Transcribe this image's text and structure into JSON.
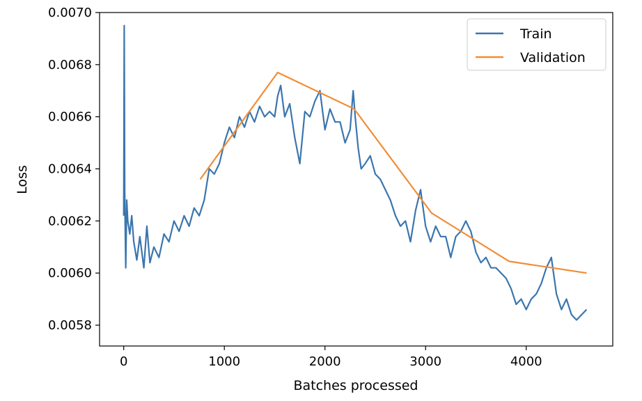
{
  "chart_data": {
    "type": "line",
    "title": "",
    "xlabel": "Batches processed",
    "ylabel": "Loss",
    "xlim": [
      -240,
      4860
    ],
    "ylim": [
      0.00572,
      0.007
    ],
    "x_ticks": [
      0,
      1000,
      2000,
      3000,
      4000
    ],
    "x_tick_labels": [
      "0",
      "1000",
      "2000",
      "3000",
      "4000"
    ],
    "y_ticks": [
      0.0058,
      0.006,
      0.0062,
      0.0064,
      0.0066,
      0.0068,
      0.007
    ],
    "y_tick_labels": [
      "0.0058",
      "0.0060",
      "0.0062",
      "0.0064",
      "0.0066",
      "0.0068",
      "0.0070"
    ],
    "grid": false,
    "legend_position": "top-right",
    "series": [
      {
        "name": "Train",
        "color": "#3a76ae",
        "x": [
          0,
          5,
          10,
          20,
          30,
          40,
          60,
          80,
          100,
          130,
          160,
          200,
          230,
          260,
          300,
          350,
          400,
          450,
          500,
          550,
          600,
          650,
          700,
          750,
          800,
          850,
          900,
          950,
          1000,
          1050,
          1100,
          1150,
          1200,
          1250,
          1300,
          1350,
          1400,
          1450,
          1500,
          1530,
          1560,
          1600,
          1650,
          1700,
          1750,
          1800,
          1850,
          1900,
          1950,
          2000,
          2050,
          2100,
          2150,
          2200,
          2250,
          2280,
          2300,
          2330,
          2360,
          2400,
          2450,
          2500,
          2550,
          2600,
          2650,
          2700,
          2750,
          2800,
          2850,
          2900,
          2950,
          3000,
          3050,
          3100,
          3150,
          3200,
          3250,
          3300,
          3350,
          3400,
          3450,
          3500,
          3550,
          3600,
          3650,
          3700,
          3750,
          3800,
          3850,
          3900,
          3950,
          4000,
          4050,
          4100,
          4150,
          4200,
          4250,
          4300,
          4350,
          4400,
          4450,
          4500,
          4550,
          4600
        ],
        "y": [
          0.00622,
          0.00695,
          0.00632,
          0.00602,
          0.00628,
          0.0062,
          0.00615,
          0.00622,
          0.00612,
          0.00605,
          0.00614,
          0.00602,
          0.00618,
          0.00604,
          0.0061,
          0.00606,
          0.00615,
          0.00612,
          0.0062,
          0.00616,
          0.00622,
          0.00618,
          0.00625,
          0.00622,
          0.00628,
          0.0064,
          0.00638,
          0.00642,
          0.0065,
          0.00656,
          0.00652,
          0.0066,
          0.00656,
          0.00662,
          0.00658,
          0.00664,
          0.0066,
          0.00662,
          0.0066,
          0.00668,
          0.00672,
          0.0066,
          0.00665,
          0.00652,
          0.00642,
          0.00662,
          0.0066,
          0.00666,
          0.0067,
          0.00655,
          0.00663,
          0.00658,
          0.00658,
          0.0065,
          0.00655,
          0.0067,
          0.0066,
          0.00648,
          0.0064,
          0.00642,
          0.00645,
          0.00638,
          0.00636,
          0.00632,
          0.00628,
          0.00622,
          0.00618,
          0.0062,
          0.00612,
          0.00624,
          0.00632,
          0.00618,
          0.00612,
          0.00618,
          0.00614,
          0.00614,
          0.00606,
          0.00614,
          0.00616,
          0.0062,
          0.00616,
          0.00608,
          0.00604,
          0.00606,
          0.00602,
          0.00602,
          0.006,
          0.00598,
          0.00594,
          0.00588,
          0.0059,
          0.00586,
          0.0059,
          0.00592,
          0.00596,
          0.00602,
          0.00606,
          0.00592,
          0.00586,
          0.0059,
          0.00584,
          0.00582,
          0.00584,
          0.00586
        ]
      },
      {
        "name": "Validation",
        "color": "#f28c36",
        "x": [
          760,
          1530,
          2290,
          3060,
          3830,
          4600
        ],
        "y": [
          0.00636,
          0.00677,
          0.00663,
          0.00623,
          0.006045,
          0.006
        ]
      }
    ]
  }
}
